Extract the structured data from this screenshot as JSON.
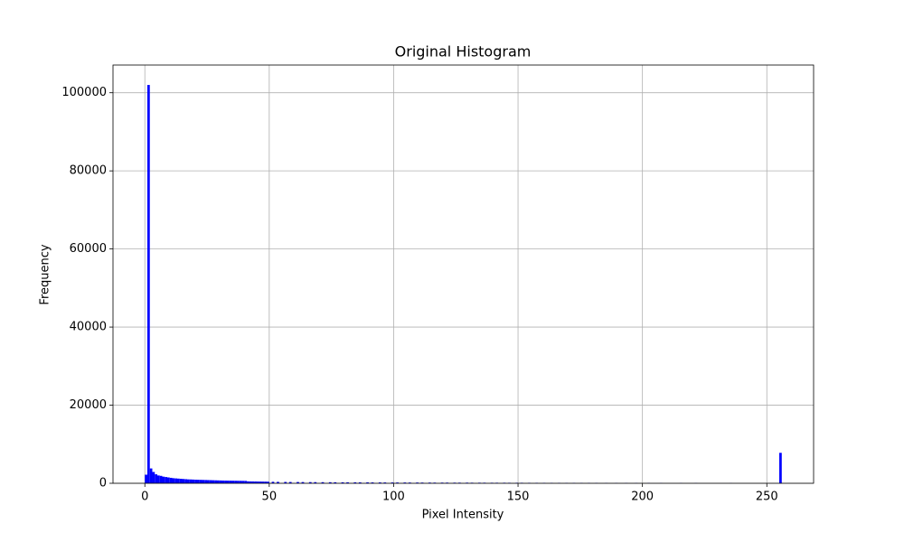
{
  "chart_data": {
    "type": "histogram",
    "title": "Original Histogram",
    "xlabel": "Pixel Intensity",
    "ylabel": "Frequency",
    "color": "#0000ff",
    "grid": true,
    "bins": [
      0,
      1,
      2,
      3,
      4,
      5,
      6,
      7,
      8,
      9,
      10,
      11,
      12,
      13,
      14,
      15,
      16,
      17,
      18,
      19,
      20,
      21,
      22,
      23,
      24,
      25,
      26,
      27,
      28,
      29,
      30,
      31,
      32,
      33,
      34,
      35,
      36,
      37,
      38,
      39,
      40,
      41,
      42,
      43,
      44,
      45,
      46,
      47,
      48,
      49,
      50,
      51,
      52,
      53,
      54,
      55,
      56,
      57,
      58,
      59,
      60,
      61,
      62,
      63,
      64,
      65,
      66,
      67,
      68,
      69,
      70,
      71,
      72,
      73,
      74,
      75,
      76,
      77,
      78,
      79,
      80,
      81,
      82,
      83,
      84,
      85,
      86,
      87,
      88,
      89,
      90,
      91,
      92,
      93,
      94,
      95,
      96,
      97,
      98,
      99,
      100,
      101,
      102,
      103,
      104,
      105,
      106,
      107,
      108,
      109,
      110,
      111,
      112,
      113,
      114,
      115,
      116,
      117,
      118,
      119,
      120,
      121,
      122,
      123,
      124,
      125,
      126,
      127,
      128,
      129,
      130,
      131,
      132,
      133,
      134,
      135,
      136,
      137,
      138,
      139,
      140,
      141,
      142,
      143,
      144,
      145,
      146,
      147,
      148,
      149,
      150,
      151,
      152,
      153,
      154,
      155,
      156,
      157,
      158,
      159,
      160,
      161,
      162,
      163,
      164,
      165,
      166,
      167,
      168,
      169,
      170,
      171,
      172,
      173,
      174,
      175,
      176,
      177,
      178,
      179,
      180,
      181,
      182,
      183,
      184,
      185,
      186,
      187,
      188,
      189,
      190,
      191,
      192,
      193,
      194,
      195,
      196,
      197,
      198,
      199,
      200,
      201,
      202,
      203,
      204,
      205,
      206,
      207,
      208,
      209,
      210,
      211,
      212,
      213,
      214,
      215,
      216,
      217,
      218,
      219,
      220,
      221,
      222,
      223,
      224,
      225,
      226,
      227,
      228,
      229,
      230,
      231,
      232,
      233,
      234,
      235,
      236,
      237,
      238,
      239,
      240,
      241,
      242,
      243,
      244,
      245,
      246,
      247,
      248,
      249,
      250,
      251,
      252,
      253,
      254,
      255,
      256
    ],
    "counts": [
      2200,
      102000,
      3800,
      2900,
      2300,
      2000,
      1900,
      1700,
      1600,
      1500,
      1400,
      1300,
      1250,
      1200,
      1150,
      1100,
      1050,
      1000,
      980,
      950,
      920,
      900,
      880,
      860,
      840,
      820,
      800,
      780,
      760,
      740,
      720,
      700,
      690,
      680,
      670,
      660,
      650,
      640,
      630,
      620,
      610,
      500,
      480,
      470,
      460,
      450,
      440,
      430,
      420,
      410,
      0,
      380,
      0,
      360,
      0,
      0,
      340,
      0,
      330,
      0,
      0,
      320,
      0,
      310,
      0,
      0,
      300,
      0,
      290,
      0,
      0,
      280,
      0,
      0,
      270,
      0,
      260,
      0,
      0,
      250,
      0,
      240,
      0,
      0,
      240,
      0,
      230,
      0,
      0,
      230,
      0,
      220,
      0,
      0,
      220,
      0,
      210,
      0,
      0,
      210,
      0,
      200,
      0,
      0,
      200,
      0,
      190,
      0,
      0,
      190,
      0,
      180,
      0,
      0,
      180,
      0,
      170,
      0,
      0,
      170,
      0,
      170,
      0,
      0,
      160,
      0,
      160,
      0,
      0,
      160,
      0,
      150,
      0,
      0,
      150,
      0,
      150,
      0,
      0,
      140,
      0,
      140,
      0,
      0,
      140,
      0,
      130,
      0,
      0,
      130,
      0,
      130,
      0,
      0,
      120,
      0,
      0,
      120,
      0,
      0,
      110,
      0,
      0,
      110,
      0,
      0,
      100,
      0,
      0,
      100,
      0,
      0,
      100,
      0,
      0,
      90,
      0,
      0,
      90,
      0,
      0,
      90,
      0,
      0,
      0,
      80,
      0,
      0,
      0,
      80,
      0,
      0,
      0,
      80,
      0,
      0,
      0,
      70,
      0,
      0,
      0,
      0,
      70,
      0,
      0,
      0,
      0,
      60,
      0,
      0,
      0,
      0,
      0,
      0,
      0,
      60,
      0,
      0,
      0,
      0,
      0,
      50,
      0,
      0,
      0,
      0,
      0,
      0,
      0,
      0,
      0,
      0,
      0,
      0,
      0,
      40,
      0,
      0,
      0,
      0,
      0,
      0,
      0,
      0,
      0,
      0,
      0,
      0,
      0,
      0,
      0,
      0,
      0,
      0,
      0,
      7800
    ],
    "xlim": [
      -12.8,
      268.8
    ],
    "ylim": [
      0,
      107100
    ],
    "xticks": [
      0,
      50,
      100,
      150,
      200,
      250
    ],
    "yticks": [
      0,
      20000,
      40000,
      60000,
      80000,
      100000
    ]
  }
}
